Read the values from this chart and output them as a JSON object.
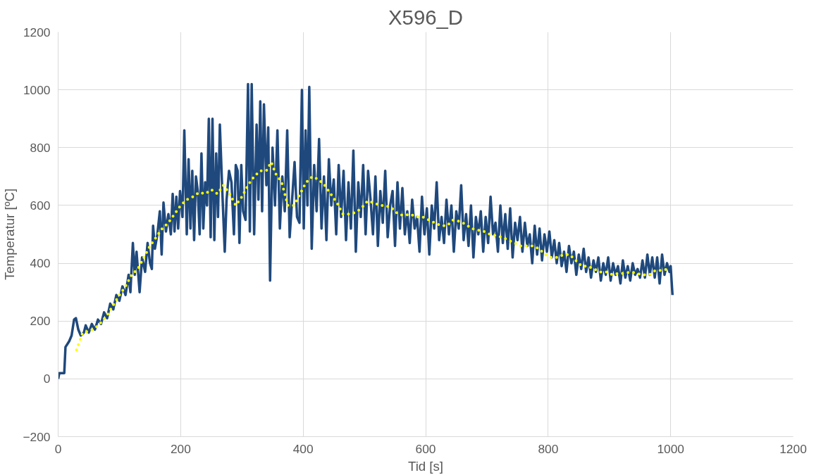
{
  "chart_data": {
    "type": "line",
    "title": "X596_D",
    "xlabel": "Tid [s]",
    "ylabel": "Temperatur [ºC]",
    "xlim": [
      0,
      1200
    ],
    "ylim": [
      -200,
      1200
    ],
    "xticks": [
      0,
      200,
      400,
      600,
      800,
      1000,
      1200
    ],
    "yticks": [
      -200,
      0,
      200,
      400,
      600,
      800,
      1000,
      1200
    ],
    "grid": true,
    "series": [
      {
        "color": "#1f497d",
        "line_style": "solid",
        "x": [
          0,
          2,
          10,
          12,
          18,
          22,
          26,
          29,
          33,
          37,
          42,
          45,
          50,
          55,
          60,
          65,
          70,
          75,
          80,
          85,
          90,
          95,
          100,
          105,
          110,
          115,
          118,
          122,
          125,
          128,
          133,
          137,
          142,
          146,
          150,
          153,
          155,
          158,
          162,
          166,
          169,
          172,
          176,
          180,
          184,
          187,
          190,
          193,
          196,
          199,
          203,
          206,
          210,
          213,
          216,
          219,
          222,
          225,
          228,
          231,
          234,
          237,
          240,
          243,
          246,
          249,
          252,
          255,
          258,
          261,
          264,
          268,
          272,
          275,
          279,
          283,
          287,
          290,
          293,
          296,
          299,
          302,
          306,
          310,
          313,
          316,
          320,
          324,
          327,
          330,
          333,
          336,
          340,
          343,
          346,
          350,
          354,
          358,
          362,
          366,
          370,
          374,
          378,
          382,
          386,
          390,
          394,
          398,
          401,
          404,
          407,
          410,
          414,
          418,
          422,
          426,
          430,
          434,
          438,
          442,
          446,
          450,
          454,
          458,
          462,
          466,
          470,
          474,
          478,
          482,
          486,
          490,
          494,
          498,
          502,
          506,
          510,
          514,
          518,
          522,
          526,
          530,
          534,
          538,
          542,
          546,
          550,
          554,
          558,
          562,
          566,
          570,
          574,
          578,
          582,
          586,
          590,
          594,
          598,
          602,
          606,
          610,
          614,
          618,
          622,
          626,
          630,
          634,
          638,
          642,
          646,
          650,
          654,
          658,
          662,
          666,
          670,
          674,
          678,
          682,
          686,
          690,
          694,
          698,
          702,
          706,
          710,
          714,
          718,
          722,
          726,
          730,
          734,
          738,
          742,
          746,
          750,
          754,
          758,
          762,
          766,
          770,
          774,
          778,
          782,
          786,
          790,
          794,
          798,
          802,
          806,
          810,
          814,
          818,
          822,
          826,
          830,
          834,
          838,
          842,
          846,
          850,
          854,
          858,
          862,
          866,
          870,
          874,
          878,
          882,
          886,
          890,
          894,
          898,
          902,
          906,
          910,
          914,
          918,
          922,
          926,
          930,
          934,
          938,
          942,
          946,
          950,
          954,
          958,
          962,
          966,
          970,
          974,
          978,
          982,
          986,
          990,
          994,
          998,
          1000,
          1003
        ],
        "values": [
          0,
          20,
          20,
          110,
          130,
          150,
          205,
          210,
          170,
          150,
          160,
          185,
          160,
          190,
          170,
          205,
          190,
          230,
          210,
          260,
          240,
          290,
          270,
          320,
          290,
          360,
          300,
          470,
          360,
          440,
          300,
          420,
          370,
          470,
          400,
          380,
          530,
          450,
          500,
          580,
          430,
          610,
          510,
          570,
          500,
          640,
          510,
          630,
          520,
          650,
          560,
          860,
          500,
          760,
          520,
          720,
          480,
          700,
          650,
          500,
          780,
          520,
          680,
          600,
          900,
          490,
          900,
          480,
          780,
          560,
          880,
          650,
          440,
          620,
          720,
          680,
          500,
          740,
          720,
          470,
          740,
          580,
          550,
          1020,
          510,
          1020,
          500,
          880,
          620,
          960,
          580,
          950,
          670,
          870,
          340,
          800,
          600,
          860,
          520,
          700,
          580,
          860,
          490,
          620,
          750,
          560,
          540,
          1000,
          520,
          860,
          600,
          1010,
          450,
          740,
          580,
          830,
          520,
          700,
          480,
          760,
          600,
          690,
          500,
          740,
          560,
          720,
          480,
          680,
          520,
          790,
          440,
          680,
          560,
          740,
          500,
          720,
          620,
          500,
          700,
          460,
          650,
          540,
          720,
          490,
          600,
          650,
          460,
          680,
          520,
          660,
          500,
          580,
          470,
          620,
          520,
          560,
          440,
          630,
          500,
          590,
          430,
          600,
          520,
          680,
          480,
          560,
          470,
          620,
          500,
          600,
          440,
          580,
          520,
          670,
          480,
          570,
          460,
          600,
          420,
          560,
          500,
          580,
          440,
          560,
          470,
          630,
          500,
          540,
          440,
          600,
          470,
          570,
          450,
          590,
          420,
          540,
          480,
          560,
          440,
          540,
          460,
          500,
          400,
          530,
          430,
          520,
          410,
          500,
          440,
          510,
          420,
          480,
          400,
          470,
          390,
          440,
          370,
          460,
          400,
          440,
          360,
          430,
          380,
          450,
          370,
          420,
          350,
          410,
          370,
          420,
          340,
          400,
          360,
          420,
          340,
          400,
          360,
          390,
          330,
          410,
          350,
          390,
          340,
          400,
          360,
          380,
          350,
          410,
          350,
          430,
          360,
          420,
          350,
          420,
          330,
          430,
          360,
          400,
          370,
          390,
          290
        ]
      },
      {
        "color": "#ffff00",
        "line_style": "dotted",
        "x": [
          30,
          35,
          40,
          50,
          60,
          70,
          80,
          90,
          100,
          110,
          120,
          130,
          140,
          150,
          160,
          170,
          180,
          190,
          200,
          210,
          220,
          230,
          240,
          250,
          260,
          270,
          280,
          290,
          300,
          310,
          320,
          330,
          340,
          348,
          355,
          365,
          375,
          385,
          395,
          405,
          415,
          425,
          435,
          445,
          455,
          465,
          475,
          485,
          495,
          505,
          515,
          525,
          535,
          545,
          555,
          565,
          575,
          585,
          595,
          605,
          615,
          625,
          635,
          645,
          655,
          665,
          675,
          685,
          695,
          705,
          715,
          725,
          735,
          745,
          755,
          765,
          775,
          785,
          795,
          805,
          815,
          825,
          835,
          845,
          855,
          865,
          875,
          885,
          895,
          905,
          915,
          925,
          935,
          945,
          955,
          965,
          975,
          985,
          995
        ],
        "values": [
          100,
          130,
          160,
          165,
          175,
          195,
          220,
          255,
          290,
          320,
          360,
          380,
          420,
          460,
          490,
          520,
          540,
          570,
          600,
          620,
          630,
          645,
          640,
          655,
          640,
          670,
          640,
          600,
          630,
          670,
          700,
          720,
          720,
          750,
          710,
          680,
          600,
          600,
          640,
          680,
          700,
          690,
          670,
          640,
          610,
          570,
          570,
          575,
          590,
          615,
          610,
          600,
          600,
          590,
          570,
          565,
          570,
          560,
          560,
          550,
          540,
          530,
          530,
          550,
          545,
          535,
          520,
          515,
          510,
          500,
          495,
          490,
          480,
          470,
          460,
          460,
          460,
          450,
          430,
          420,
          420,
          430,
          430,
          410,
          390,
          390,
          380,
          370,
          370,
          360,
          365,
          365,
          370,
          365,
          360,
          360,
          375,
          375,
          380
        ]
      }
    ]
  }
}
